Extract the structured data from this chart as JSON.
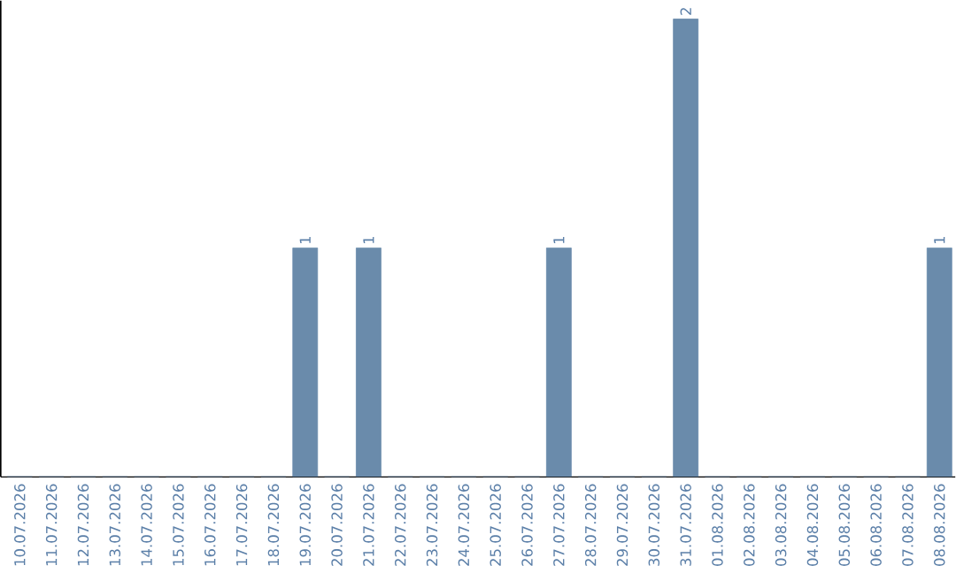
{
  "chart_data": {
    "type": "bar",
    "categories": [
      "10.07.2026",
      "11.07.2026",
      "12.07.2026",
      "13.07.2026",
      "14.07.2026",
      "15.07.2026",
      "16.07.2026",
      "17.07.2026",
      "18.07.2026",
      "19.07.2026",
      "20.07.2026",
      "21.07.2026",
      "22.07.2026",
      "23.07.2026",
      "24.07.2026",
      "25.07.2026",
      "26.07.2026",
      "27.07.2026",
      "28.07.2026",
      "29.07.2026",
      "30.07.2026",
      "31.07.2026",
      "01.08.2026",
      "02.08.2026",
      "03.08.2026",
      "04.08.2026",
      "05.08.2026",
      "06.08.2026",
      "07.08.2026",
      "08.08.2026"
    ],
    "values": [
      0,
      0,
      0,
      0,
      0,
      0,
      0,
      0,
      0,
      1,
      0,
      1,
      0,
      0,
      0,
      0,
      0,
      1,
      0,
      0,
      0,
      2,
      0,
      0,
      0,
      0,
      0,
      0,
      0,
      1
    ],
    "value_labels": [
      null,
      null,
      null,
      null,
      null,
      null,
      null,
      null,
      null,
      "1",
      null,
      "1",
      null,
      null,
      null,
      null,
      null,
      "1",
      null,
      null,
      null,
      "2",
      null,
      null,
      null,
      null,
      null,
      null,
      null,
      "1"
    ],
    "color": "#6a8bab",
    "tick_labels": "x"
  }
}
